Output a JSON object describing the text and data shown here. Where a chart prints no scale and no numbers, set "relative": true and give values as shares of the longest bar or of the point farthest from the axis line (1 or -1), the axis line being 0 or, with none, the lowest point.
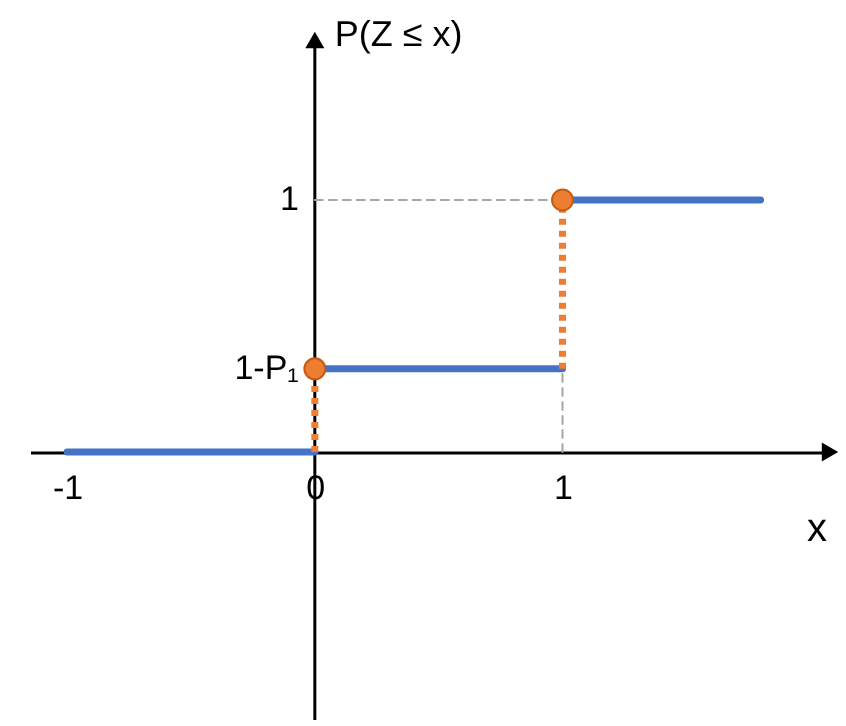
{
  "chart_data": {
    "type": "line",
    "relative": true,
    "xlabel": "x",
    "ylabel": "P(Z ≤ x)",
    "xlim": [
      -1.15,
      2.08
    ],
    "xticks": [
      -1,
      0,
      1
    ],
    "annotations": [
      {
        "text": "1-P₁",
        "x": 0,
        "y": 0.33
      },
      {
        "text": "1",
        "x": 0,
        "y": 1
      }
    ],
    "series": [
      {
        "type": "line",
        "color": "#a6a6a6",
        "line_style": "dashed",
        "x": [
          0,
          1,
          null,
          1,
          1
        ],
        "values": [
          1,
          1,
          null,
          0,
          0.33
        ]
      },
      {
        "type": "line",
        "color": "#4472c4",
        "line_style": "solid",
        "x": [
          -1,
          0,
          null,
          0,
          1,
          null,
          1,
          1.8
        ],
        "values": [
          0,
          0,
          null,
          0.33,
          0.33,
          null,
          1,
          1
        ]
      },
      {
        "type": "line",
        "color": "#ed7d31",
        "line_style": "dotted",
        "x": [
          0,
          0,
          null,
          1,
          1
        ],
        "values": [
          0,
          0.33,
          null,
          0.33,
          1
        ]
      },
      {
        "type": "scatter",
        "color": "#ed7d31",
        "marker": "circle",
        "x": [
          0,
          1
        ],
        "values": [
          0.33,
          1
        ]
      }
    ]
  }
}
